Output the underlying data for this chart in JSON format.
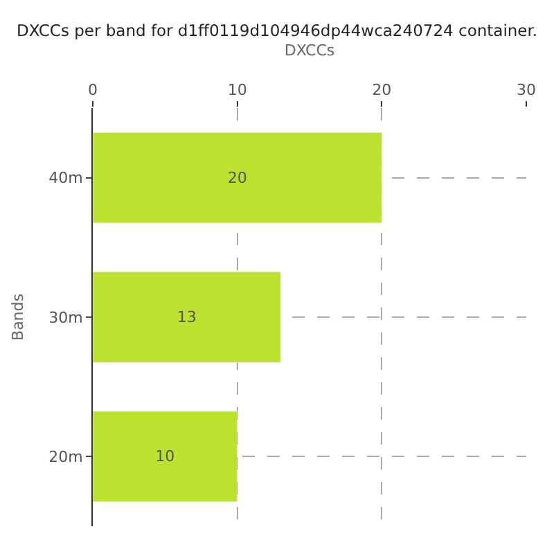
{
  "chart_data": {
    "type": "bar",
    "orientation": "horizontal",
    "title": "DXCCs per band for d1ff0119d104946dp44wca240724 container.",
    "xlabel": "DXCCs",
    "ylabel": "Bands",
    "categories": [
      "40m",
      "30m",
      "20m"
    ],
    "values": [
      20,
      13,
      10
    ],
    "color": "#bde22e",
    "xlim": [
      0,
      30
    ],
    "xticks": [
      0,
      10,
      20,
      30
    ],
    "grid": true,
    "data_labels": true
  }
}
